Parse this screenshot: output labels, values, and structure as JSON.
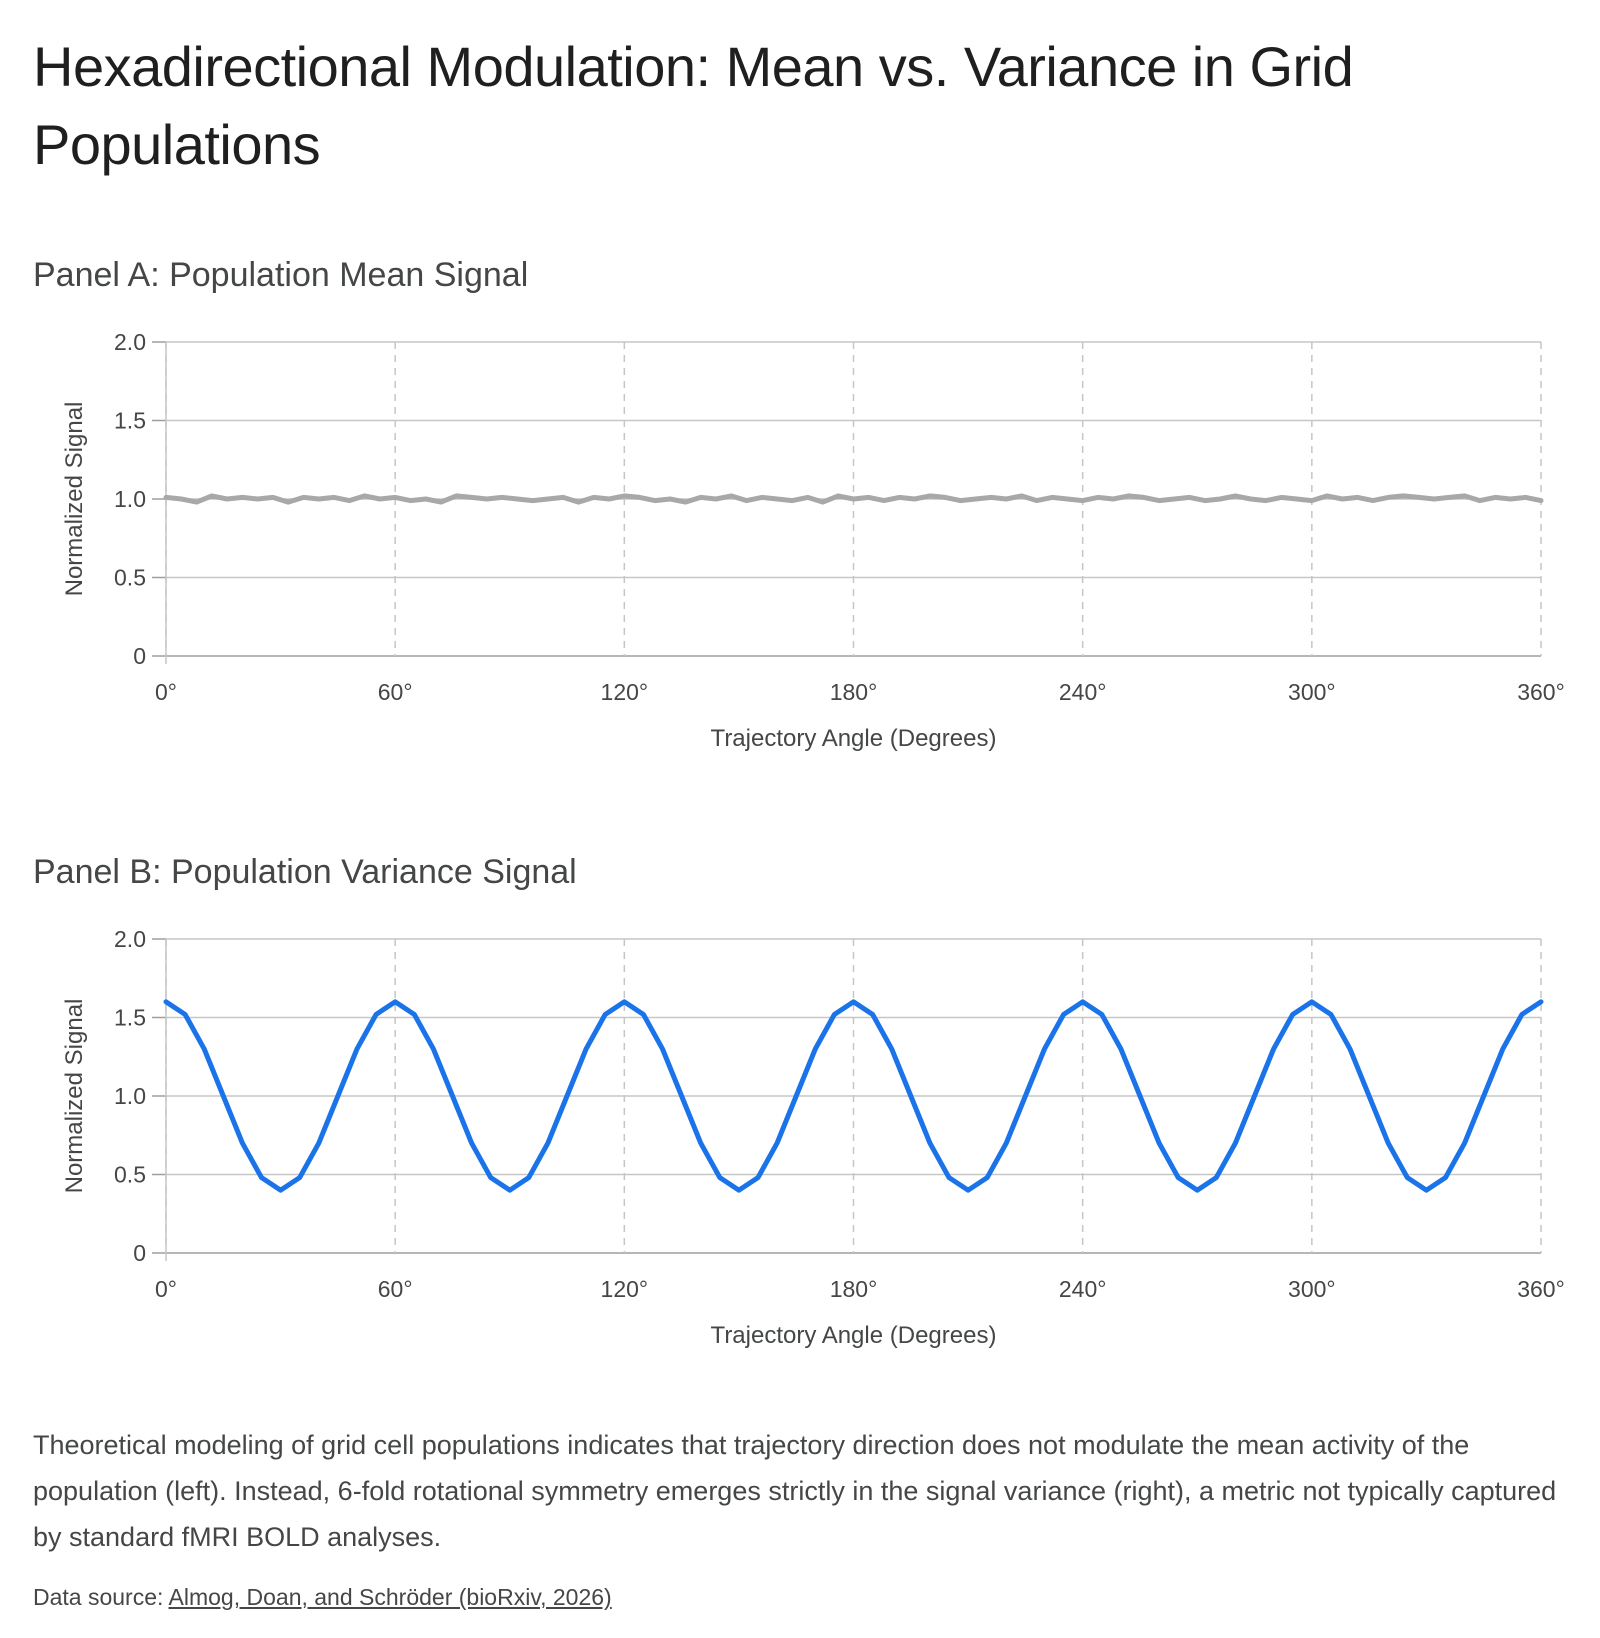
{
  "title": "Hexadirectional Modulation: Mean vs. Variance in Grid Populations",
  "caption": "Theoretical modeling of grid cell populations indicates that trajectory direction does not modulate the mean activity of the population (left). Instead, 6-fold rotational symmetry emerges strictly in the signal variance (right), a metric not typically captured by standard fMRI BOLD analyses.",
  "source": {
    "prefix": "Data source: ",
    "link_text": "Almog, Doan, and Schröder (bioRxiv, 2026)"
  },
  "chart_data": [
    {
      "type": "line",
      "title": "Panel A: Population Mean Signal",
      "xlabel": "Trajectory Angle (Degrees)",
      "ylabel": "Normalized Signal",
      "xlim": [
        0,
        360
      ],
      "ylim": [
        0,
        2.0
      ],
      "x_ticks": [
        0,
        60,
        120,
        180,
        240,
        300,
        360
      ],
      "x_tick_labels": [
        "0°",
        "60°",
        "120°",
        "180°",
        "240°",
        "300°",
        "360°"
      ],
      "y_ticks": [
        0,
        0.5,
        1.0,
        1.5,
        2.0
      ],
      "y_tick_labels": [
        "0",
        "0.5",
        "1.0",
        "1.5",
        "2.0"
      ],
      "grid": {
        "horizontal": "solid",
        "vertical": "dashed"
      },
      "series": [
        {
          "color": "#a8a8a8",
          "x": [
            0,
            4,
            8,
            12,
            16,
            20,
            24,
            28,
            32,
            36,
            40,
            44,
            48,
            52,
            56,
            60,
            64,
            68,
            72,
            76,
            80,
            84,
            88,
            92,
            96,
            100,
            104,
            108,
            112,
            116,
            120,
            124,
            128,
            132,
            136,
            140,
            144,
            148,
            152,
            156,
            160,
            164,
            168,
            172,
            176,
            180,
            184,
            188,
            192,
            196,
            200,
            204,
            208,
            212,
            216,
            220,
            224,
            228,
            232,
            236,
            240,
            244,
            248,
            252,
            256,
            260,
            264,
            268,
            272,
            276,
            280,
            284,
            288,
            292,
            296,
            300,
            304,
            308,
            312,
            316,
            320,
            324,
            328,
            332,
            336,
            340,
            344,
            348,
            352,
            356,
            360
          ],
          "values": [
            1.01,
            1.0,
            0.98,
            1.02,
            1.0,
            1.01,
            1.0,
            1.01,
            0.98,
            1.01,
            1.0,
            1.01,
            0.99,
            1.02,
            1.0,
            1.01,
            0.99,
            1.0,
            0.98,
            1.02,
            1.01,
            1.0,
            1.01,
            1.0,
            0.99,
            1.0,
            1.01,
            0.98,
            1.01,
            1.0,
            1.02,
            1.01,
            0.99,
            1.0,
            0.98,
            1.01,
            1.0,
            1.02,
            0.99,
            1.01,
            1.0,
            0.99,
            1.01,
            0.98,
            1.02,
            1.0,
            1.01,
            0.99,
            1.01,
            1.0,
            1.02,
            1.01,
            0.99,
            1.0,
            1.01,
            1.0,
            1.02,
            0.99,
            1.01,
            1.0,
            0.99,
            1.01,
            1.0,
            1.02,
            1.01,
            0.99,
            1.0,
            1.01,
            0.99,
            1.0,
            1.02,
            1.0,
            0.99,
            1.01,
            1.0,
            0.99,
            1.02,
            1.0,
            1.01,
            0.99,
            1.01,
            1.02,
            1.01,
            1.0,
            1.01,
            1.02,
            0.99,
            1.01,
            1.0,
            1.01,
            0.99
          ]
        }
      ]
    },
    {
      "type": "line",
      "title": "Panel B: Population Variance Signal",
      "xlabel": "Trajectory Angle (Degrees)",
      "ylabel": "Normalized Signal",
      "xlim": [
        0,
        360
      ],
      "ylim": [
        0,
        2.0
      ],
      "x_ticks": [
        0,
        60,
        120,
        180,
        240,
        300,
        360
      ],
      "x_tick_labels": [
        "0°",
        "60°",
        "120°",
        "180°",
        "240°",
        "300°",
        "360°"
      ],
      "y_ticks": [
        0,
        0.5,
        1.0,
        1.5,
        2.0
      ],
      "y_tick_labels": [
        "0",
        "0.5",
        "1.0",
        "1.5",
        "2.0"
      ],
      "grid": {
        "horizontal": "solid",
        "vertical": "dashed"
      },
      "series": [
        {
          "color": "#1a73e8",
          "x": [
            0,
            5,
            10,
            15,
            20,
            25,
            30,
            35,
            40,
            45,
            50,
            55,
            60,
            65,
            70,
            75,
            80,
            85,
            90,
            95,
            100,
            105,
            110,
            115,
            120,
            125,
            130,
            135,
            140,
            145,
            150,
            155,
            160,
            165,
            170,
            175,
            180,
            185,
            190,
            195,
            200,
            205,
            210,
            215,
            220,
            225,
            230,
            235,
            240,
            245,
            250,
            255,
            260,
            265,
            270,
            275,
            280,
            285,
            290,
            295,
            300,
            305,
            310,
            315,
            320,
            325,
            330,
            335,
            340,
            345,
            350,
            355,
            360
          ],
          "values": [
            1.6,
            1.52,
            1.3,
            1.0,
            0.7,
            0.48,
            0.4,
            0.48,
            0.7,
            1.0,
            1.3,
            1.52,
            1.6,
            1.52,
            1.3,
            1.0,
            0.7,
            0.48,
            0.4,
            0.48,
            0.7,
            1.0,
            1.3,
            1.52,
            1.6,
            1.52,
            1.3,
            1.0,
            0.7,
            0.48,
            0.4,
            0.48,
            0.7,
            1.0,
            1.3,
            1.52,
            1.6,
            1.52,
            1.3,
            1.0,
            0.7,
            0.48,
            0.4,
            0.48,
            0.7,
            1.0,
            1.3,
            1.52,
            1.6,
            1.52,
            1.3,
            1.0,
            0.7,
            0.48,
            0.4,
            0.48,
            0.7,
            1.0,
            1.3,
            1.52,
            1.6,
            1.52,
            1.3,
            1.0,
            0.7,
            0.48,
            0.4,
            0.48,
            0.7,
            1.0,
            1.3,
            1.52,
            1.6
          ]
        }
      ]
    }
  ]
}
